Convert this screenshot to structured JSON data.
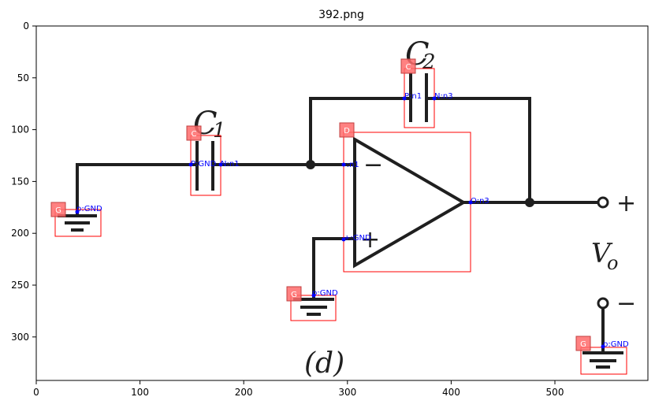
{
  "title": "392.png",
  "x_ticks": [
    "0",
    "100",
    "200",
    "300",
    "400",
    "500"
  ],
  "y_ticks": [
    "0",
    "50",
    "100",
    "150",
    "200",
    "250",
    "300"
  ],
  "diagram_labels": {
    "c1_main": "C",
    "c1_sub": "1",
    "c2_main": "C",
    "c2_sub": "2",
    "vo_main": "V",
    "vo_sub": "o",
    "plus_terminal": "+",
    "minus_terminal": "−",
    "opamp_minus": "−",
    "opamp_plus": "+",
    "figure_label": "(d)"
  },
  "components": [
    {
      "tag": "G",
      "pins": [
        "p:GND"
      ]
    },
    {
      "tag": "C",
      "pins": [
        "P:GND",
        "N:n1"
      ]
    },
    {
      "tag": "C",
      "pins": [
        "P:n1",
        "N:n3"
      ]
    },
    {
      "tag": "D",
      "pins": [
        "-:n1",
        "+:GND",
        "O:n3"
      ]
    },
    {
      "tag": "G",
      "pins": [
        "p:GND"
      ]
    },
    {
      "tag": "G",
      "pins": [
        "p:GND"
      ]
    }
  ]
}
